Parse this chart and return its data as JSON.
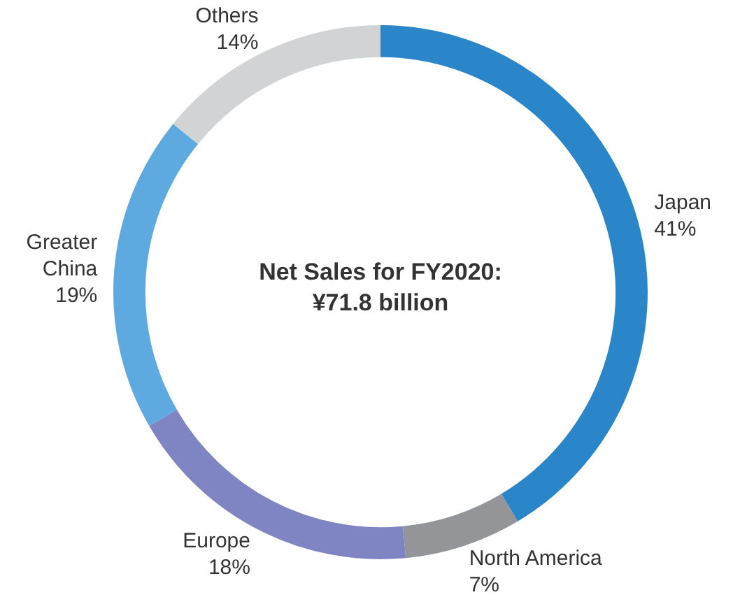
{
  "chart_data": {
    "type": "donut",
    "title": "Net Sales for FY2020: ¥71.8 billion",
    "categories": [
      "Japan",
      "North America",
      "Europe",
      "Greater China",
      "Others"
    ],
    "values": [
      41,
      7,
      18,
      19,
      14
    ],
    "colors": [
      "#2a85c9",
      "#939598",
      "#7f85c2",
      "#5eaae0",
      "#d1d3d4"
    ],
    "value_labels": [
      "41%",
      "7%",
      "18%",
      "19%",
      "14%"
    ],
    "legend": false
  }
}
